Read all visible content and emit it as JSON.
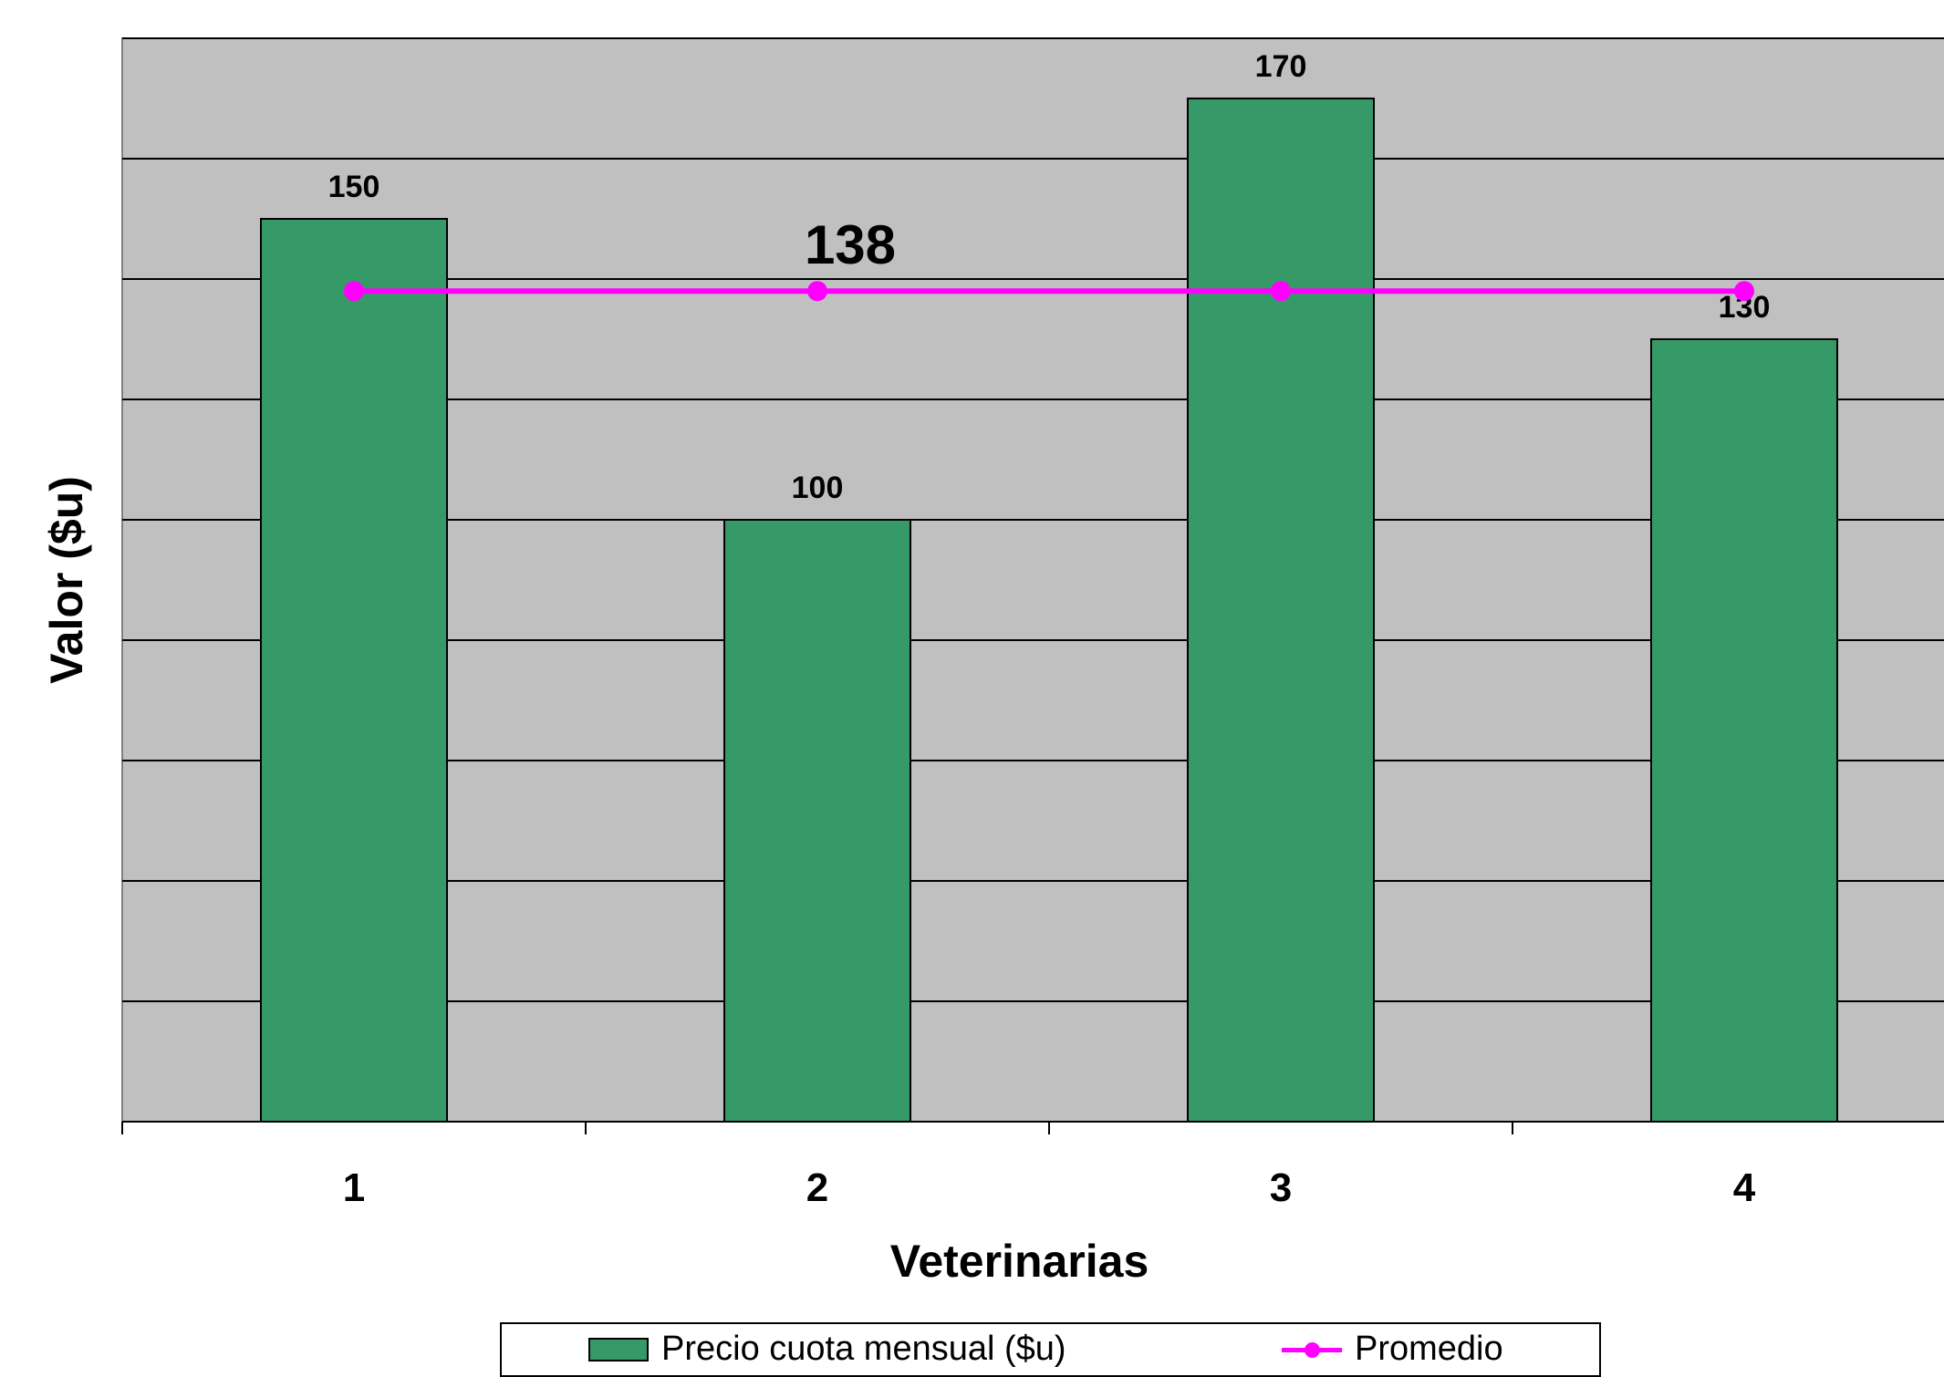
{
  "chart_data": {
    "type": "bar",
    "categories": [
      "1",
      "2",
      "3",
      "4"
    ],
    "series": [
      {
        "name": "Precio cuota mensual ($u)",
        "values": [
          150,
          100,
          170,
          130
        ],
        "color": "#359a68"
      },
      {
        "name": "Promedio",
        "type": "line",
        "values": [
          138,
          138,
          138,
          138
        ],
        "color": "#ff00ff"
      }
    ],
    "data_labels": [
      "150",
      "100",
      "170",
      "130"
    ],
    "average_label": "138",
    "xlabel": "Veterinarias",
    "ylabel": "Valor ($u)",
    "ylim": [
      0,
      180
    ],
    "grid": true,
    "plot_background": "#c0c0c0",
    "legend_position": "bottom"
  },
  "legend": {
    "bar_label": "Precio cuota mensual ($u)",
    "line_label": "Promedio"
  }
}
